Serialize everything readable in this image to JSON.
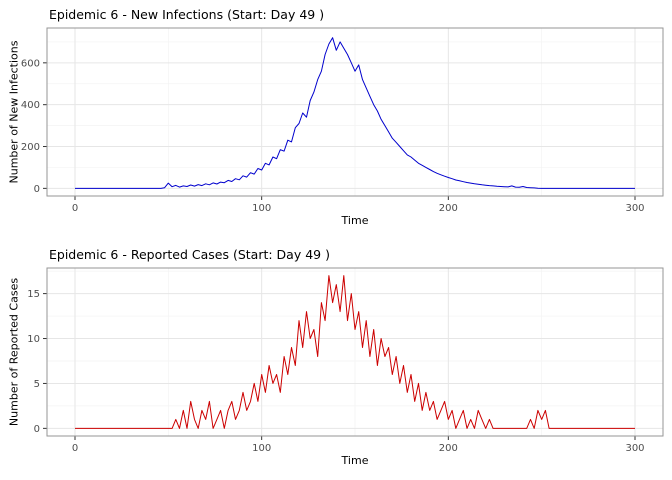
{
  "style": {
    "background": "#ffffff",
    "grid_major": "#e6e6e6",
    "grid_minor": "#f3f3f3",
    "panel_border": "#969696",
    "tick_mark": "#333333",
    "tick_label": "#4d4d4d",
    "title_color": "#000000"
  },
  "chart_data": [
    {
      "type": "line",
      "title": "Epidemic 6 - New Infections (Start: Day 49 )",
      "xlabel": "Time",
      "ylabel": "Number of New Infections",
      "color": "#0000CD",
      "xlim": [
        0,
        300
      ],
      "ylim": [
        0,
        730
      ],
      "xticks": [
        0,
        100,
        200,
        300
      ],
      "xticks_minor": [
        50,
        150,
        250
      ],
      "yticks": [
        0,
        200,
        400,
        600
      ],
      "yticks_minor": [
        100,
        300,
        500,
        700
      ],
      "legend": "none",
      "grid": "on",
      "x_start": 0,
      "x_step": 2,
      "values": [
        0,
        0,
        0,
        0,
        0,
        0,
        0,
        0,
        0,
        0,
        0,
        0,
        0,
        0,
        0,
        0,
        0,
        0,
        0,
        0,
        0,
        0,
        0,
        0,
        3,
        25,
        8,
        14,
        6,
        12,
        9,
        16,
        11,
        18,
        13,
        22,
        17,
        26,
        21,
        30,
        27,
        38,
        33,
        46,
        41,
        60,
        54,
        75,
        68,
        95,
        88,
        120,
        112,
        150,
        142,
        185,
        178,
        230,
        222,
        290,
        310,
        360,
        340,
        420,
        460,
        520,
        560,
        640,
        690,
        720,
        660,
        700,
        670,
        640,
        600,
        560,
        590,
        520,
        480,
        440,
        400,
        370,
        330,
        300,
        270,
        240,
        220,
        200,
        180,
        160,
        150,
        135,
        120,
        110,
        100,
        90,
        80,
        72,
        65,
        58,
        52,
        46,
        40,
        36,
        32,
        28,
        25,
        22,
        20,
        17,
        15,
        13,
        12,
        10,
        9,
        8,
        7,
        12,
        6,
        5,
        9,
        4,
        3,
        2,
        1,
        0,
        0,
        0,
        0,
        0,
        0,
        0,
        0,
        0,
        0,
        0,
        0,
        0,
        0,
        0,
        0,
        0,
        0,
        0,
        0,
        0,
        0,
        0,
        0,
        0,
        0
      ]
    },
    {
      "type": "line",
      "title": "Epidemic 6 - Reported Cases (Start: Day 49 )",
      "xlabel": "Time",
      "ylabel": "Number of Reported Cases",
      "color": "#CC0000",
      "xlim": [
        0,
        300
      ],
      "ylim": [
        0,
        17
      ],
      "xticks": [
        0,
        100,
        200,
        300
      ],
      "xticks_minor": [
        50,
        150,
        250
      ],
      "yticks": [
        0,
        5,
        10,
        15
      ],
      "yticks_minor": [
        2.5,
        7.5,
        12.5,
        17.5
      ],
      "legend": "none",
      "grid": "on",
      "x_start": 0,
      "x_step": 2,
      "values": [
        0,
        0,
        0,
        0,
        0,
        0,
        0,
        0,
        0,
        0,
        0,
        0,
        0,
        0,
        0,
        0,
        0,
        0,
        0,
        0,
        0,
        0,
        0,
        0,
        0,
        0,
        0,
        1,
        0,
        2,
        0,
        3,
        1,
        0,
        2,
        1,
        3,
        0,
        1,
        2,
        0,
        2,
        3,
        1,
        2,
        4,
        2,
        3,
        5,
        3,
        6,
        4,
        7,
        5,
        6,
        4,
        8,
        6,
        9,
        7,
        12,
        9,
        13,
        10,
        11,
        8,
        14,
        12,
        17,
        14,
        16,
        13,
        17,
        12,
        15,
        11,
        13,
        9,
        12,
        8,
        11,
        7,
        10,
        8,
        9,
        6,
        8,
        5,
        7,
        4,
        6,
        3,
        5,
        2,
        4,
        2,
        3,
        1,
        2,
        3,
        1,
        2,
        0,
        1,
        2,
        0,
        1,
        0,
        2,
        1,
        0,
        1,
        0,
        0,
        0,
        0,
        0,
        0,
        0,
        0,
        0,
        0,
        1,
        0,
        2,
        1,
        2,
        0,
        0,
        0,
        0,
        0,
        0,
        0,
        0,
        0,
        0,
        0,
        0,
        0,
        0,
        0,
        0,
        0,
        0,
        0,
        0,
        0,
        0,
        0,
        0
      ]
    }
  ]
}
